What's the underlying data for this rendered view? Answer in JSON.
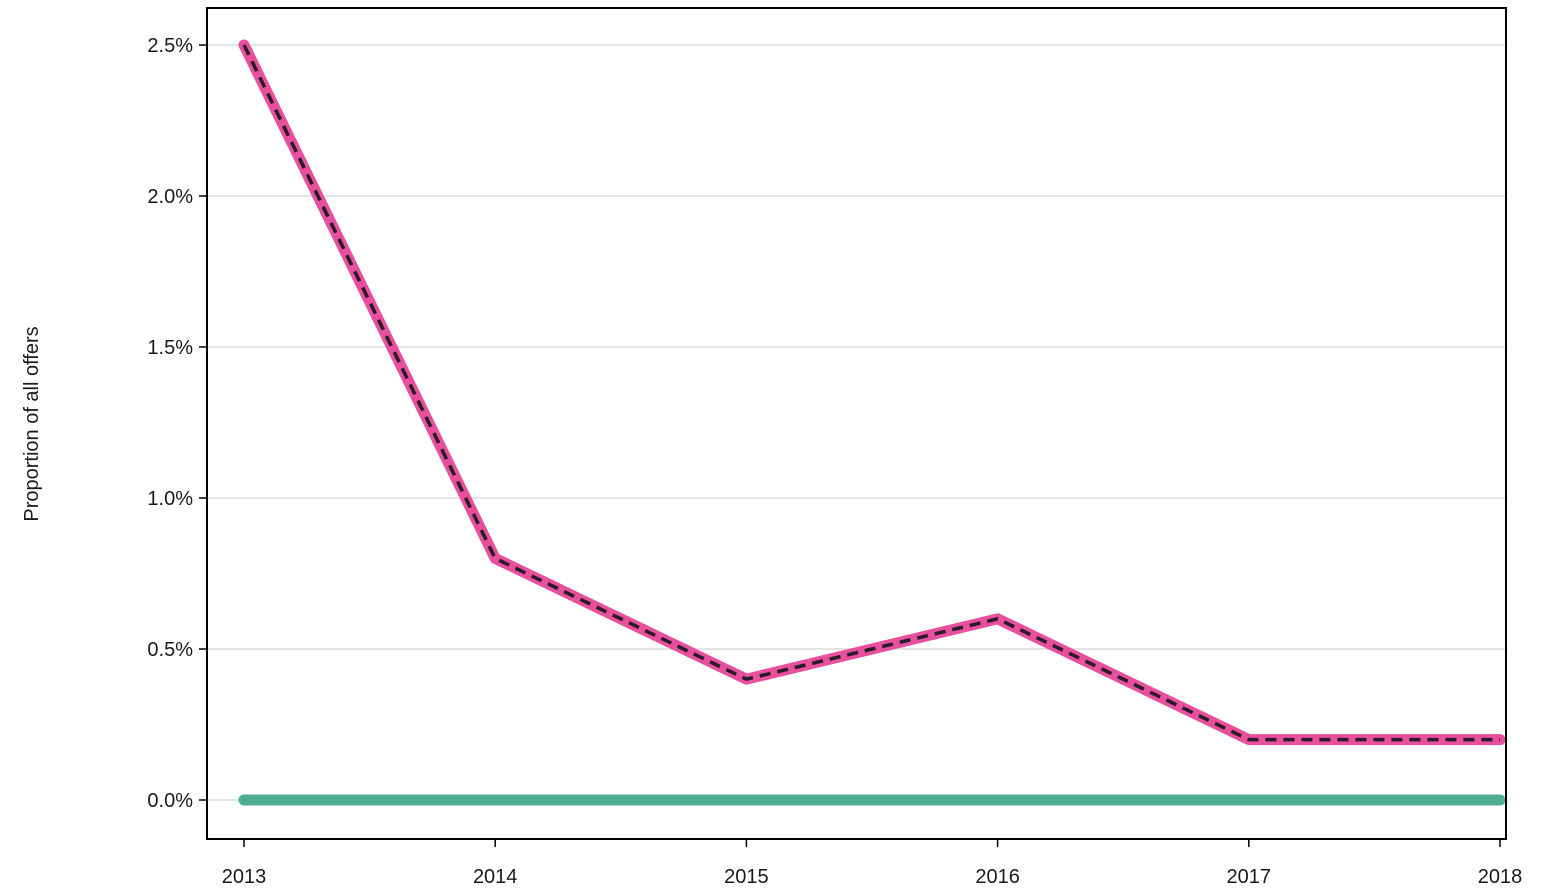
{
  "chart_data": {
    "type": "line",
    "title": "",
    "xlabel": "",
    "ylabel": "Proportion of all offers",
    "x": [
      "2013",
      "2014",
      "2015",
      "2016",
      "2017",
      "2018"
    ],
    "ylim": [
      0,
      2.5
    ],
    "yticks": [
      0,
      0.5,
      1.0,
      1.5,
      2.0,
      2.5
    ],
    "ytick_labels": [
      "0.0%",
      "0.5%",
      "1.0%",
      "1.5%",
      "2.0%",
      "2.5%"
    ],
    "grid": "horizontal",
    "series": [
      {
        "values": [
          2.5,
          0.8,
          0.4,
          0.6,
          0.2,
          0.2
        ],
        "color": "#e84f9c",
        "overlay_color": "#2a1a2a",
        "style": "solid-with-dashed-overlay"
      },
      {
        "values": [
          0,
          0,
          0,
          0,
          0,
          0
        ],
        "color": "#4caf93",
        "style": "solid"
      }
    ]
  }
}
